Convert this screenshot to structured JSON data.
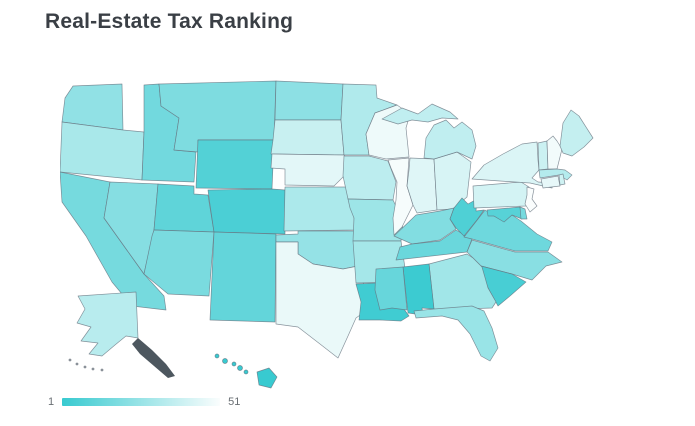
{
  "page": {
    "title": "Real-Estate Tax Ranking"
  },
  "chart_data": {
    "type": "choropleth",
    "title": "Real-Estate Tax Ranking",
    "region": "United States",
    "value_label": "rank",
    "rank_range": [
      1,
      51
    ],
    "legend": {
      "min_label": "1",
      "max_label": "51"
    },
    "colors": {
      "scale_start": "#38cad0",
      "scale_end": "#fafdfd",
      "border": "#64707c",
      "alaska_coast": "#4d575f"
    },
    "states": [
      {
        "abbr": "HI",
        "name": "Hawaii",
        "rank": 1
      },
      {
        "abbr": "AL",
        "name": "Alabama",
        "rank": 2
      },
      {
        "abbr": "LA",
        "name": "Louisiana",
        "rank": 3
      },
      {
        "abbr": "SC",
        "name": "South Carolina",
        "rank": 5
      },
      {
        "abbr": "CO",
        "name": "Colorado",
        "rank": 6
      },
      {
        "abbr": "WV",
        "name": "West Virginia",
        "rank": 7
      },
      {
        "abbr": "WY",
        "name": "Wyoming",
        "rank": 8
      },
      {
        "abbr": "MD",
        "name": "Maryland",
        "rank": 9
      },
      {
        "abbr": "UT",
        "name": "Utah",
        "rank": 11
      },
      {
        "abbr": "NM",
        "name": "New Mexico",
        "rank": 12
      },
      {
        "abbr": "MS",
        "name": "Mississippi",
        "rank": 13
      },
      {
        "abbr": "TN",
        "name": "Tennessee",
        "rank": 14
      },
      {
        "abbr": "VA",
        "name": "Virginia",
        "rank": 15
      },
      {
        "abbr": "ID",
        "name": "Idaho",
        "rank": 16
      },
      {
        "abbr": "CA",
        "name": "California",
        "rank": 17
      },
      {
        "abbr": "DE",
        "name": "Delaware",
        "rank": 17
      },
      {
        "abbr": "AZ",
        "name": "Arizona",
        "rank": 18
      },
      {
        "abbr": "MT",
        "name": "Montana",
        "rank": 19
      },
      {
        "abbr": "KY",
        "name": "Kentucky",
        "rank": 20
      },
      {
        "abbr": "NV",
        "name": "Nevada",
        "rank": 21
      },
      {
        "abbr": "NC",
        "name": "North Carolina",
        "rank": 22
      },
      {
        "abbr": "ND",
        "name": "North Dakota",
        "rank": 23
      },
      {
        "abbr": "WA",
        "name": "Washington",
        "rank": 24
      },
      {
        "abbr": "OK",
        "name": "Oklahoma",
        "rank": 25
      },
      {
        "abbr": "FL",
        "name": "Florida",
        "rank": 26
      },
      {
        "abbr": "MO",
        "name": "Missouri",
        "rank": 27
      },
      {
        "abbr": "GA",
        "name": "Georgia",
        "rank": 28
      },
      {
        "abbr": "AR",
        "name": "Arkansas",
        "rank": 29
      },
      {
        "abbr": "OR",
        "name": "Oregon",
        "rank": 30
      },
      {
        "abbr": "KS",
        "name": "Kansas",
        "rank": 31
      },
      {
        "abbr": "MN",
        "name": "Minnesota",
        "rank": 32
      },
      {
        "abbr": "MA",
        "name": "Massachusetts",
        "rank": 33
      },
      {
        "abbr": "AK",
        "name": "Alaska",
        "rank": 34
      },
      {
        "abbr": "IA",
        "name": "Iowa",
        "rank": 35
      },
      {
        "abbr": "MI",
        "name": "Michigan",
        "rank": 36
      },
      {
        "abbr": "ME",
        "name": "Maine",
        "rank": 37
      },
      {
        "abbr": "SD",
        "name": "South Dakota",
        "rank": 38
      },
      {
        "abbr": "VT",
        "name": "Vermont",
        "rank": 39
      },
      {
        "abbr": "RI",
        "name": "Rhode Island",
        "rank": 40
      },
      {
        "abbr": "PA",
        "name": "Pennsylvania",
        "rank": 41
      },
      {
        "abbr": "OH",
        "name": "Ohio",
        "rank": 42
      },
      {
        "abbr": "NY",
        "name": "New York",
        "rank": 43
      },
      {
        "abbr": "IN",
        "name": "Indiana",
        "rank": 44
      },
      {
        "abbr": "NE",
        "name": "Nebraska",
        "rank": 45
      },
      {
        "abbr": "CT",
        "name": "Connecticut",
        "rank": 46
      },
      {
        "abbr": "TX",
        "name": "Texas",
        "rank": 47
      },
      {
        "abbr": "WI",
        "name": "Wisconsin",
        "rank": 48
      },
      {
        "abbr": "NH",
        "name": "New Hampshire",
        "rank": 49
      },
      {
        "abbr": "IL",
        "name": "Illinois",
        "rank": 50
      },
      {
        "abbr": "NJ",
        "name": "New Jersey",
        "rank": 51
      }
    ]
  }
}
